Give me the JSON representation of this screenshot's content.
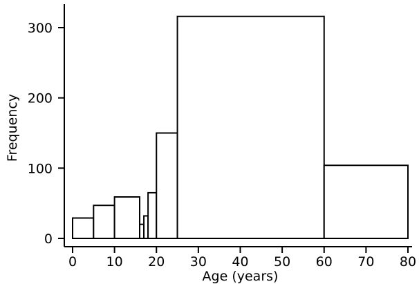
{
  "chart_data": {
    "type": "bar",
    "title": "",
    "xlabel": "Age (years)",
    "ylabel": "Frequency",
    "xlim": [
      0,
      80
    ],
    "ylim": [
      0,
      330
    ],
    "grid": false,
    "x_ticks": [
      0,
      10,
      20,
      30,
      40,
      50,
      60,
      70,
      80
    ],
    "y_ticks": [
      0,
      100,
      200,
      300
    ],
    "bins": [
      {
        "start": 0,
        "end": 5,
        "value": 29
      },
      {
        "start": 5,
        "end": 10,
        "value": 47
      },
      {
        "start": 10,
        "end": 16,
        "value": 59
      },
      {
        "start": 16,
        "end": 17,
        "value": 20
      },
      {
        "start": 17,
        "end": 18,
        "value": 32
      },
      {
        "start": 18,
        "end": 20,
        "value": 65
      },
      {
        "start": 20,
        "end": 25,
        "value": 150
      },
      {
        "start": 25,
        "end": 60,
        "value": 316
      },
      {
        "start": 60,
        "end": 80,
        "value": 104
      }
    ]
  }
}
